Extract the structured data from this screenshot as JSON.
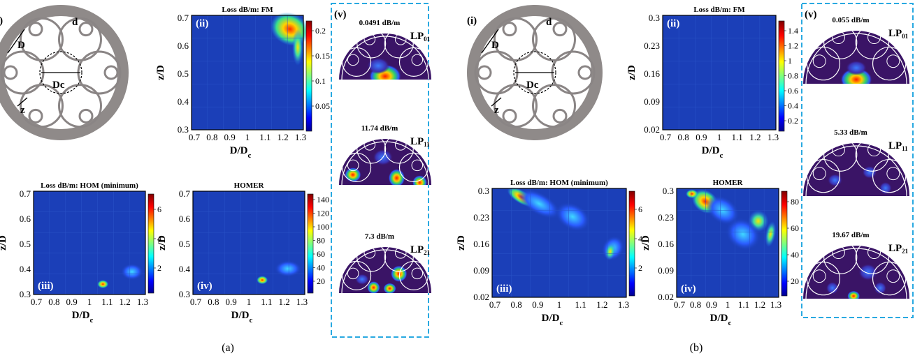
{
  "figure": {
    "panels": [
      {
        "caption": "(a)",
        "fiber": {
          "label": "(i)",
          "labels": [
            "D",
            "d",
            "Dc",
            "z"
          ]
        },
        "fm_map": {
          "label": "(ii)",
          "title": "Loss dB/m: FM",
          "xlabel": "D/D",
          "xlabel_sub": "c",
          "ylabel": "z/D",
          "xticks": [
            "0.7",
            "0.8",
            "0.9",
            "1",
            "1.1",
            "1.2",
            "1.3"
          ],
          "yticks": [
            "0.3",
            "0.4",
            "0.5",
            "0.6",
            "0.7"
          ],
          "cbar_ticks": [
            "0.2",
            "0.15",
            "0.1",
            "0.05"
          ]
        },
        "hom_map": {
          "label": "(iii)",
          "title": "Loss dB/m: HOM (minimum)",
          "xlabel": "D/D",
          "xlabel_sub": "c",
          "ylabel": "z/D",
          "xticks": [
            "0.7",
            "0.8",
            "0.9",
            "1",
            "1.1",
            "1.2",
            "1.3"
          ],
          "yticks": [
            "0.3",
            "0.4",
            "0.5",
            "0.6",
            "0.7"
          ],
          "cbar_ticks": [
            "6",
            "4",
            "2"
          ]
        },
        "homer_map": {
          "label": "(iv)",
          "title": "HOMER",
          "xlabel": "D/D",
          "xlabel_sub": "c",
          "ylabel": "z/D",
          "xticks": [
            "0.7",
            "0.8",
            "0.9",
            "1",
            "1.1",
            "1.2",
            "1.3"
          ],
          "yticks": [
            "0.3",
            "0.4",
            "0.5",
            "0.6",
            "0.7"
          ],
          "cbar_ticks": [
            "140",
            "120",
            "100",
            "80",
            "60",
            "40",
            "20"
          ]
        },
        "modes": {
          "label": "(v)",
          "items": [
            {
              "loss": "0.0491 dB/m",
              "name": "LP",
              "sub": "01"
            },
            {
              "loss": "11.74 dB/m",
              "name": "LP",
              "sub": "11"
            },
            {
              "loss": "7.3 dB/m",
              "name": "LP",
              "sub": "21"
            }
          ]
        }
      },
      {
        "caption": "(b)",
        "fiber": {
          "label": "(i)",
          "labels": [
            "D",
            "d",
            "Dc",
            "z"
          ]
        },
        "fm_map": {
          "label": "(ii)",
          "title": "Loss dB/m: FM",
          "xlabel": "D/D",
          "xlabel_sub": "c",
          "ylabel": "z/D",
          "xticks": [
            "0.7",
            "0.8",
            "0.9",
            "1",
            "1.1",
            "1.2",
            "1.3"
          ],
          "yticks": [
            "0.02",
            "0.09",
            "0.16",
            "0.23",
            "0.3"
          ],
          "cbar_ticks": [
            "1.4",
            "1.2",
            "1",
            "0.8",
            "0.6",
            "0.4",
            "0.2"
          ]
        },
        "hom_map": {
          "label": "(iii)",
          "title": "Loss dB/m: HOM (minimum)",
          "xlabel": "D/D",
          "xlabel_sub": "c",
          "ylabel": "z/D",
          "xticks": [
            "0.7",
            "0.8",
            "0.9",
            "1",
            "1.1",
            "1.2",
            "1.3"
          ],
          "yticks": [
            "0.02",
            "0.09",
            "0.16",
            "0.23",
            "0.3"
          ],
          "cbar_ticks": [
            "6",
            "4",
            "2"
          ]
        },
        "homer_map": {
          "label": "(iv)",
          "title": "HOMER",
          "xlabel": "D/D",
          "xlabel_sub": "c",
          "ylabel": "z/D",
          "xticks": [
            "0.7",
            "0.8",
            "0.9",
            "1",
            "1.1",
            "1.2",
            "1.3"
          ],
          "yticks": [
            "0.02",
            "0.09",
            "0.16",
            "0.23",
            "0.3"
          ],
          "cbar_ticks": [
            "80",
            "60",
            "40",
            "20"
          ]
        },
        "modes": {
          "label": "(v)",
          "items": [
            {
              "loss": "0.055 dB/m",
              "name": "LP",
              "sub": "01"
            },
            {
              "loss": "5.33 dB/m",
              "name": "LP",
              "sub": "11"
            },
            {
              "loss": "19.67 dB/m",
              "name": "LP",
              "sub": "21"
            }
          ]
        }
      }
    ]
  },
  "colors": {
    "map_background": "#1b3fb8",
    "fiber_cladding": "#8f8a89",
    "mode_background": "#3a1466",
    "dashed_frame": "#29a9e1"
  }
}
